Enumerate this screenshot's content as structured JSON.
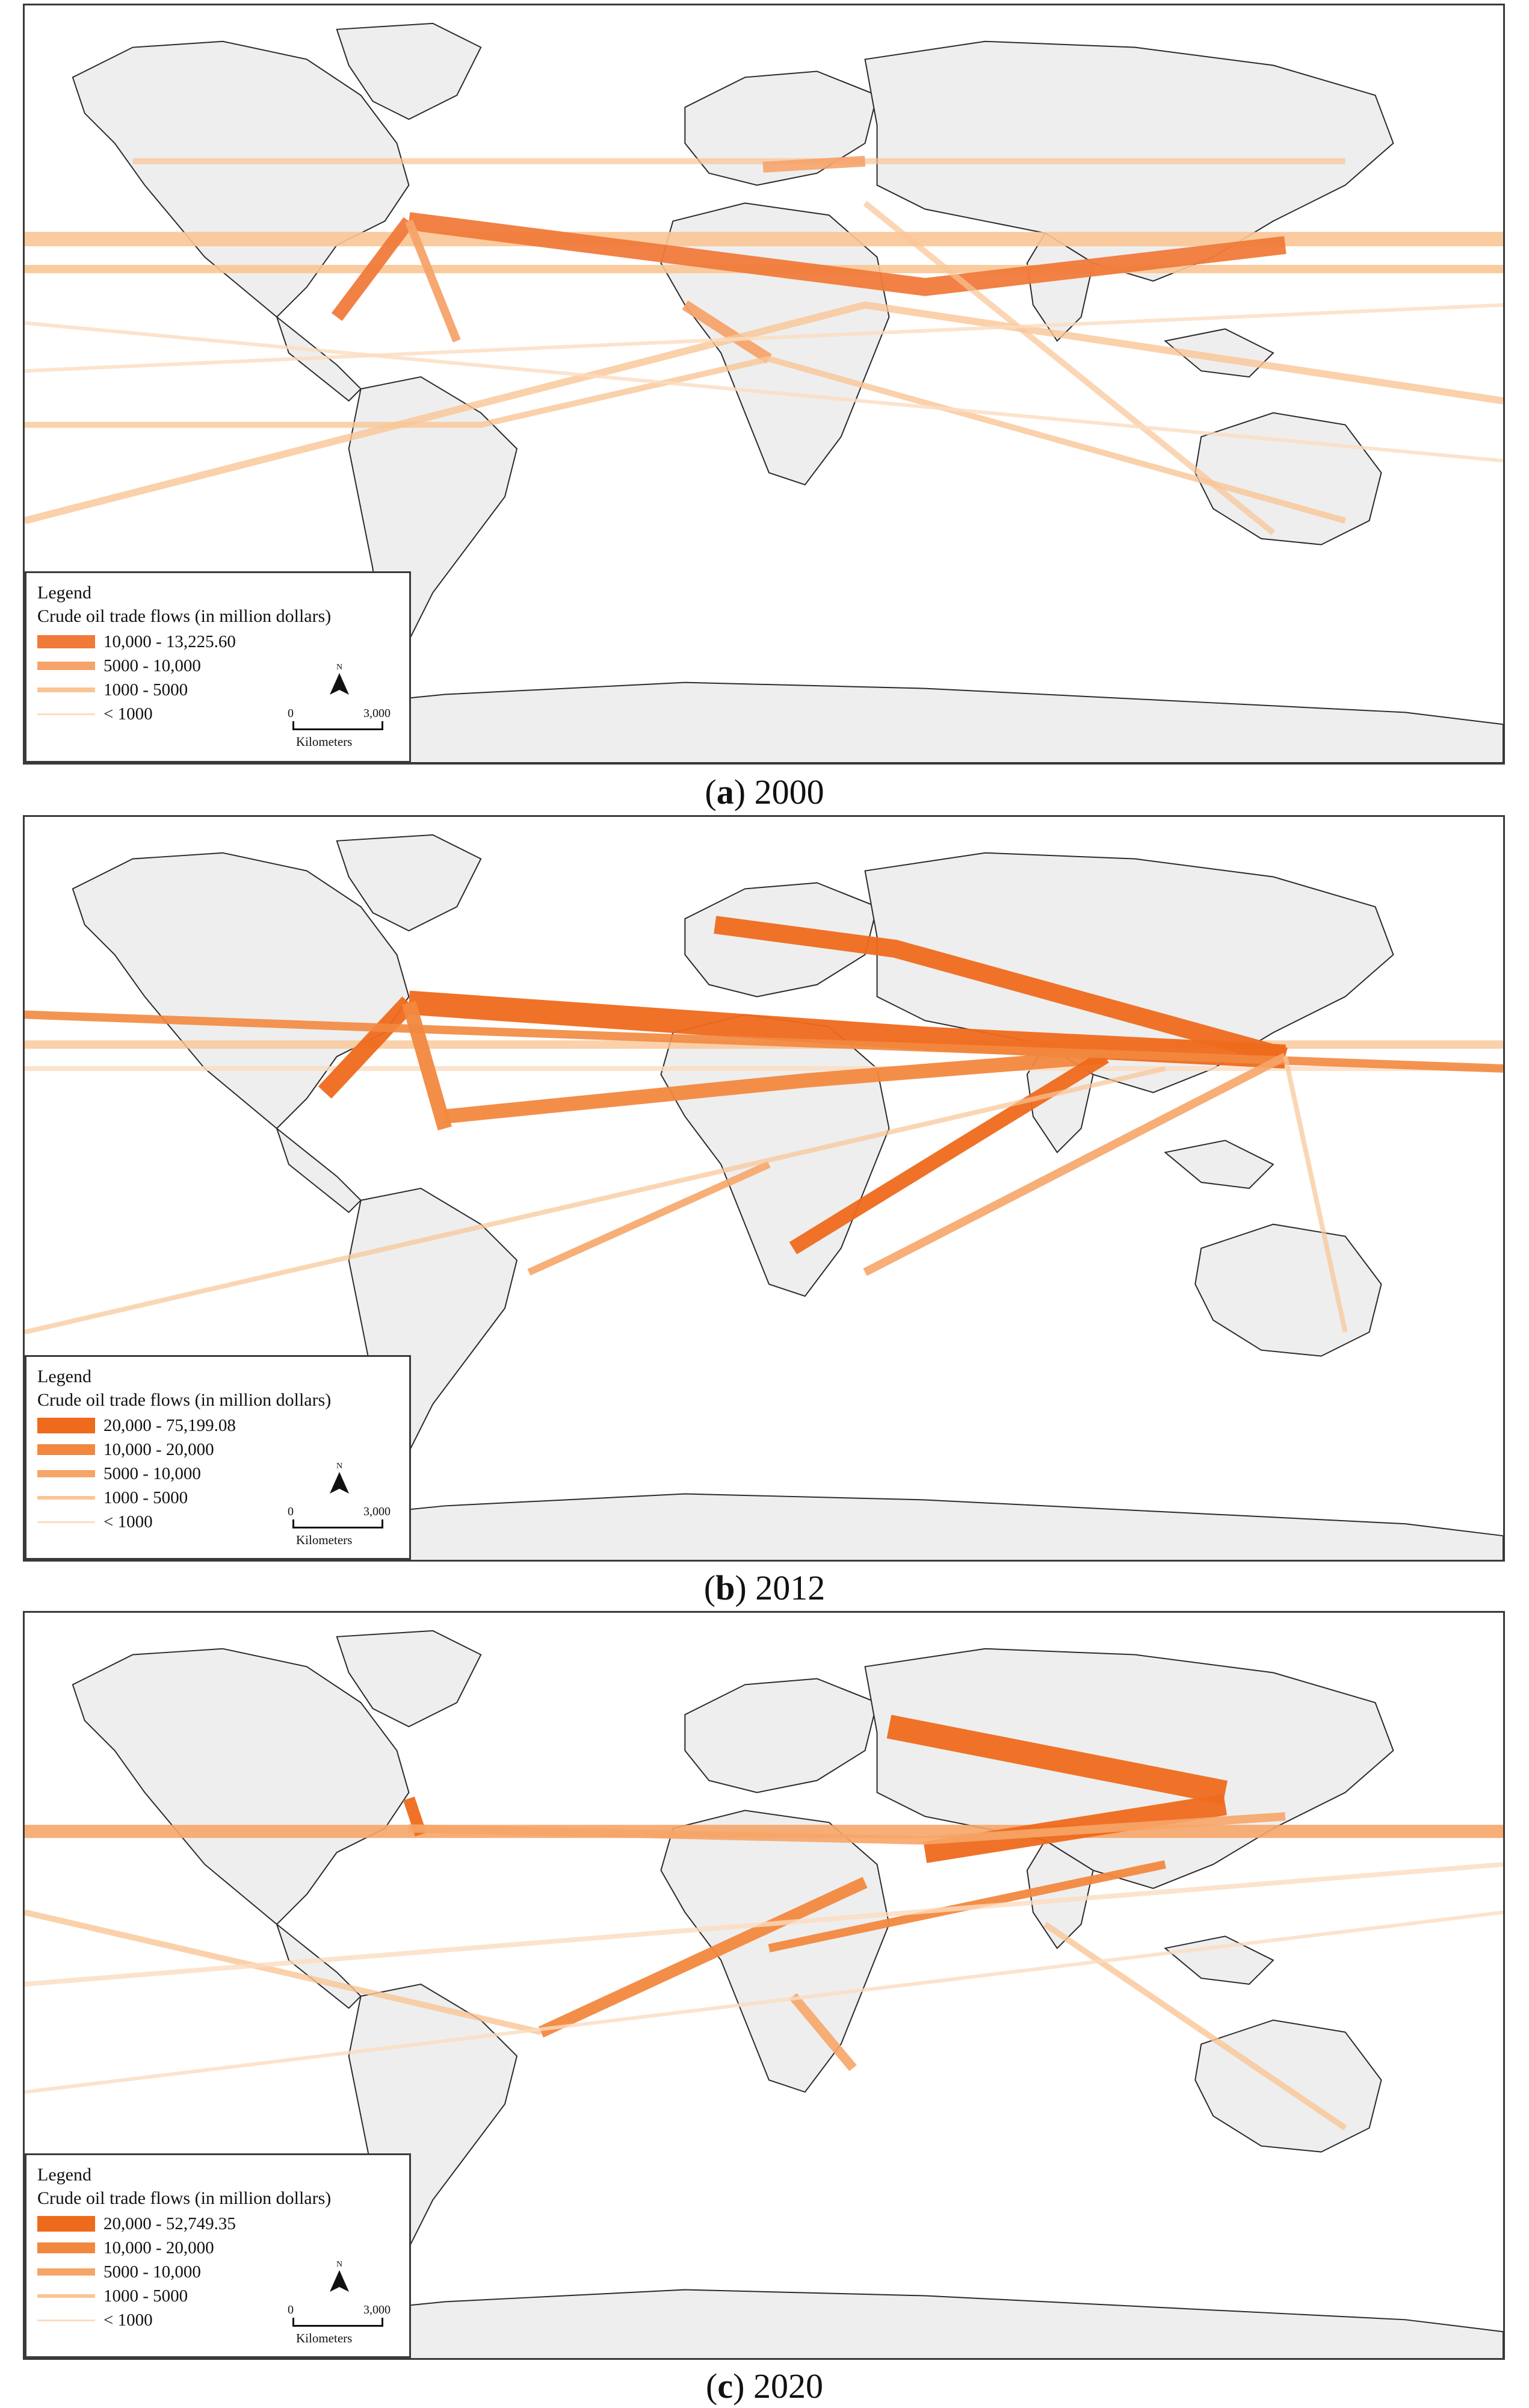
{
  "panels": [
    {
      "caption_letter": "a",
      "caption_year": "2000",
      "legend": {
        "title": "Legend",
        "subtitle": "Crude oil trade flows (in million dollars)",
        "classes": [
          {
            "label": "10,000 - 13,225.60",
            "color": "#f07a3a"
          },
          {
            "label": "5000 - 10,000",
            "color": "#f6a36a"
          },
          {
            "label": "1000 - 5000",
            "color": "#f9c595"
          },
          {
            "label": "< 1000",
            "color": "#fbdcc0"
          }
        ],
        "north_label": "N",
        "scale_start": "0",
        "scale_end": "3,000",
        "scale_unit": "Kilometers"
      }
    },
    {
      "caption_letter": "b",
      "caption_year": "2012",
      "legend": {
        "title": "Legend",
        "subtitle": "Crude oil trade flows (in million dollars)",
        "classes": [
          {
            "label": "20,000 - 75,199.08",
            "color": "#ee6a1c"
          },
          {
            "label": "10,000 - 20,000",
            "color": "#f2883f"
          },
          {
            "label": "5000 - 10,000",
            "color": "#f6a568"
          },
          {
            "label": "1000 - 5000",
            "color": "#f9c595"
          },
          {
            "label": "< 1000",
            "color": "#fbdcc0"
          }
        ],
        "north_label": "N",
        "scale_start": "0",
        "scale_end": "3,000",
        "scale_unit": "Kilometers"
      }
    },
    {
      "caption_letter": "c",
      "caption_year": "2020",
      "legend": {
        "title": "Legend",
        "subtitle": "Crude oil trade flows (in million dollars)",
        "classes": [
          {
            "label": "20,000 - 52,749.35",
            "color": "#ee6a1c"
          },
          {
            "label": "10,000 - 20,000",
            "color": "#f2883f"
          },
          {
            "label": "5000 - 10,000",
            "color": "#f6a568"
          },
          {
            "label": "1000 - 5000",
            "color": "#f9c595"
          },
          {
            "label": "< 1000",
            "color": "#fbdcc0"
          }
        ],
        "north_label": "N",
        "scale_start": "0",
        "scale_end": "3,000",
        "scale_unit": "Kilometers"
      }
    }
  ],
  "colors": {
    "land": "#eeeeee",
    "coast": "#2b2b2b",
    "ocean": "#ffffff"
  }
}
